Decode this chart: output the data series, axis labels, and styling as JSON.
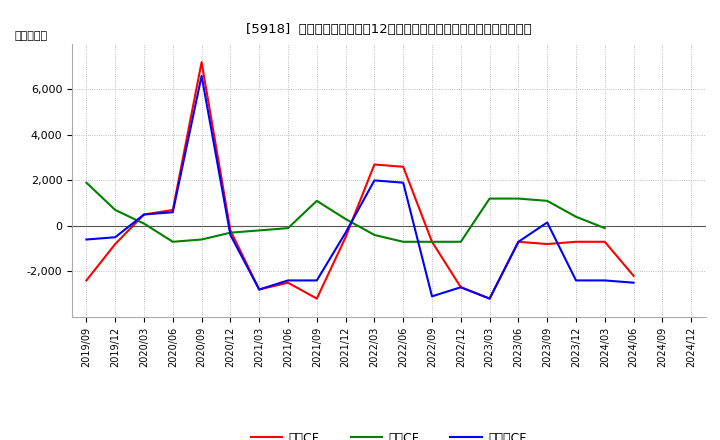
{
  "title": "[5918]  キャッシュフローの12か月移動合計の対前年同期増減額の推移",
  "ylabel": "（百万円）",
  "legend_labels": [
    "営業CF",
    "投資CF",
    "フリーCF"
  ],
  "x_labels": [
    "2019/09",
    "2019/12",
    "2020/03",
    "2020/06",
    "2020/09",
    "2020/12",
    "2021/03",
    "2021/06",
    "2021/09",
    "2021/12",
    "2022/03",
    "2022/06",
    "2022/09",
    "2022/12",
    "2023/03",
    "2023/06",
    "2023/09",
    "2023/12",
    "2024/03",
    "2024/06",
    "2024/09",
    "2024/12"
  ],
  "operating_cf": [
    -2400,
    -800,
    500,
    700,
    7200,
    -200,
    -2800,
    -2500,
    -3200,
    -500,
    2700,
    2600,
    -700,
    -2700,
    -3200,
    -700,
    -800,
    -700,
    -700,
    -2200,
    null,
    null
  ],
  "investing_cf": [
    1900,
    700,
    100,
    -700,
    -600,
    -300,
    -200,
    -100,
    1100,
    300,
    -400,
    -700,
    -700,
    -700,
    1200,
    1200,
    1100,
    400,
    -100,
    null,
    null,
    null
  ],
  "free_cf": [
    -600,
    -500,
    500,
    600,
    6600,
    -400,
    -2800,
    -2400,
    -2400,
    -300,
    2000,
    1900,
    -3100,
    -2700,
    -3200,
    -700,
    150,
    -2400,
    -2400,
    -2500,
    null,
    null
  ],
  "operating_color": "#ff0000",
  "investing_color": "#008000",
  "free_cf_color": "#0000ff",
  "background_color": "#ffffff",
  "grid_color": "#aaaaaa",
  "ylim": [
    -4000,
    8000
  ],
  "yticks": [
    -2000,
    0,
    2000,
    4000,
    6000
  ]
}
